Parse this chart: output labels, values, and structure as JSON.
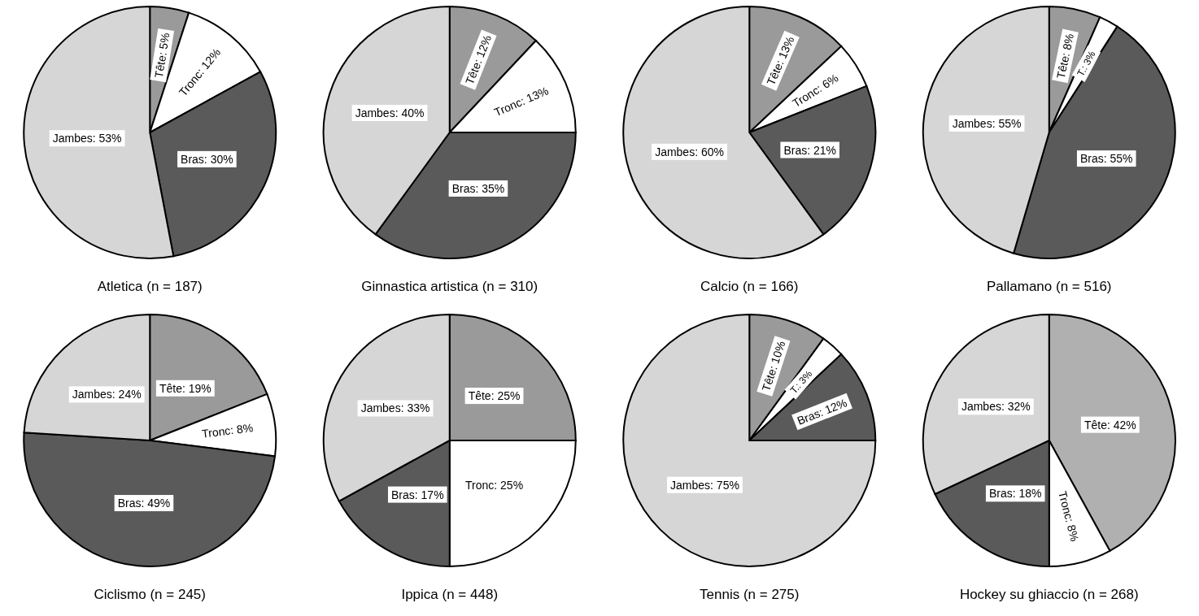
{
  "chart_data": [
    {
      "type": "pie",
      "title": "Atletica (n = 187)",
      "categories": [
        "Tête",
        "Tronc",
        "Bras",
        "Jambes"
      ],
      "values": [
        5,
        12,
        30,
        53
      ],
      "value_labels": [
        "5%",
        "12%",
        "30%",
        "53%"
      ],
      "colors": [
        "#9a9a9a",
        "#ffffff",
        "#5a5a5a",
        "#d6d6d6"
      ]
    },
    {
      "type": "pie",
      "title": "Ginnastica artistica (n = 310)",
      "categories": [
        "Tête",
        "Tronc",
        "Bras",
        "Jambes"
      ],
      "values": [
        12,
        13,
        35,
        40
      ],
      "value_labels": [
        "12%",
        "13%",
        "35%",
        "40%"
      ],
      "colors": [
        "#9a9a9a",
        "#ffffff",
        "#5a5a5a",
        "#d6d6d6"
      ]
    },
    {
      "type": "pie",
      "title": "Calcio (n = 166)",
      "categories": [
        "Tête",
        "Tronc",
        "Bras",
        "Jambes"
      ],
      "values": [
        13,
        6,
        21,
        60
      ],
      "value_labels": [
        "13%",
        "6%",
        "21%",
        "60%"
      ],
      "colors": [
        "#9a9a9a",
        "#ffffff",
        "#5a5a5a",
        "#d6d6d6"
      ]
    },
    {
      "type": "pie",
      "title": "Pallamano (n = 516)",
      "categories": [
        "Tête",
        "T.",
        "Bras",
        "Jambes"
      ],
      "values": [
        8,
        3,
        55,
        55
      ],
      "value_labels": [
        "8%",
        "3%",
        "55%",
        "55%"
      ],
      "colors": [
        "#9a9a9a",
        "#ffffff",
        "#5a5a5a",
        "#d6d6d6"
      ]
    },
    {
      "type": "pie",
      "title": "Ciclismo (n = 245)",
      "categories": [
        "Tête",
        "Tronc",
        "Bras",
        "Jambes"
      ],
      "values": [
        19,
        8,
        49,
        24
      ],
      "value_labels": [
        "19%",
        "8%",
        "49%",
        "24%"
      ],
      "colors": [
        "#9a9a9a",
        "#ffffff",
        "#5a5a5a",
        "#d6d6d6"
      ]
    },
    {
      "type": "pie",
      "title": "Ippica (n = 448)",
      "categories": [
        "Tête",
        "Tronc",
        "Bras",
        "Jambes"
      ],
      "values": [
        25,
        25,
        17,
        33
      ],
      "value_labels": [
        "25%",
        "25%",
        "17%",
        "33%"
      ],
      "colors": [
        "#9a9a9a",
        "#ffffff",
        "#5a5a5a",
        "#d6d6d6"
      ]
    },
    {
      "type": "pie",
      "title": "Tennis (n = 275)",
      "categories": [
        "Tête",
        "T.",
        "Bras",
        "Jambes"
      ],
      "values": [
        10,
        3,
        12,
        75
      ],
      "value_labels": [
        "10%",
        "3%",
        "12%",
        "75%"
      ],
      "colors": [
        "#9a9a9a",
        "#ffffff",
        "#5a5a5a",
        "#d6d6d6"
      ]
    },
    {
      "type": "pie",
      "title": "Hockey su ghiaccio (n = 268)",
      "categories": [
        "Tête",
        "Tronc",
        "Bras",
        "Jambes"
      ],
      "values": [
        42,
        8,
        18,
        32
      ],
      "value_labels": [
        "42%",
        "8%",
        "18%",
        "32%"
      ],
      "colors": [
        "#b0b0b0",
        "#ffffff",
        "#5a5a5a",
        "#d6d6d6"
      ]
    }
  ]
}
